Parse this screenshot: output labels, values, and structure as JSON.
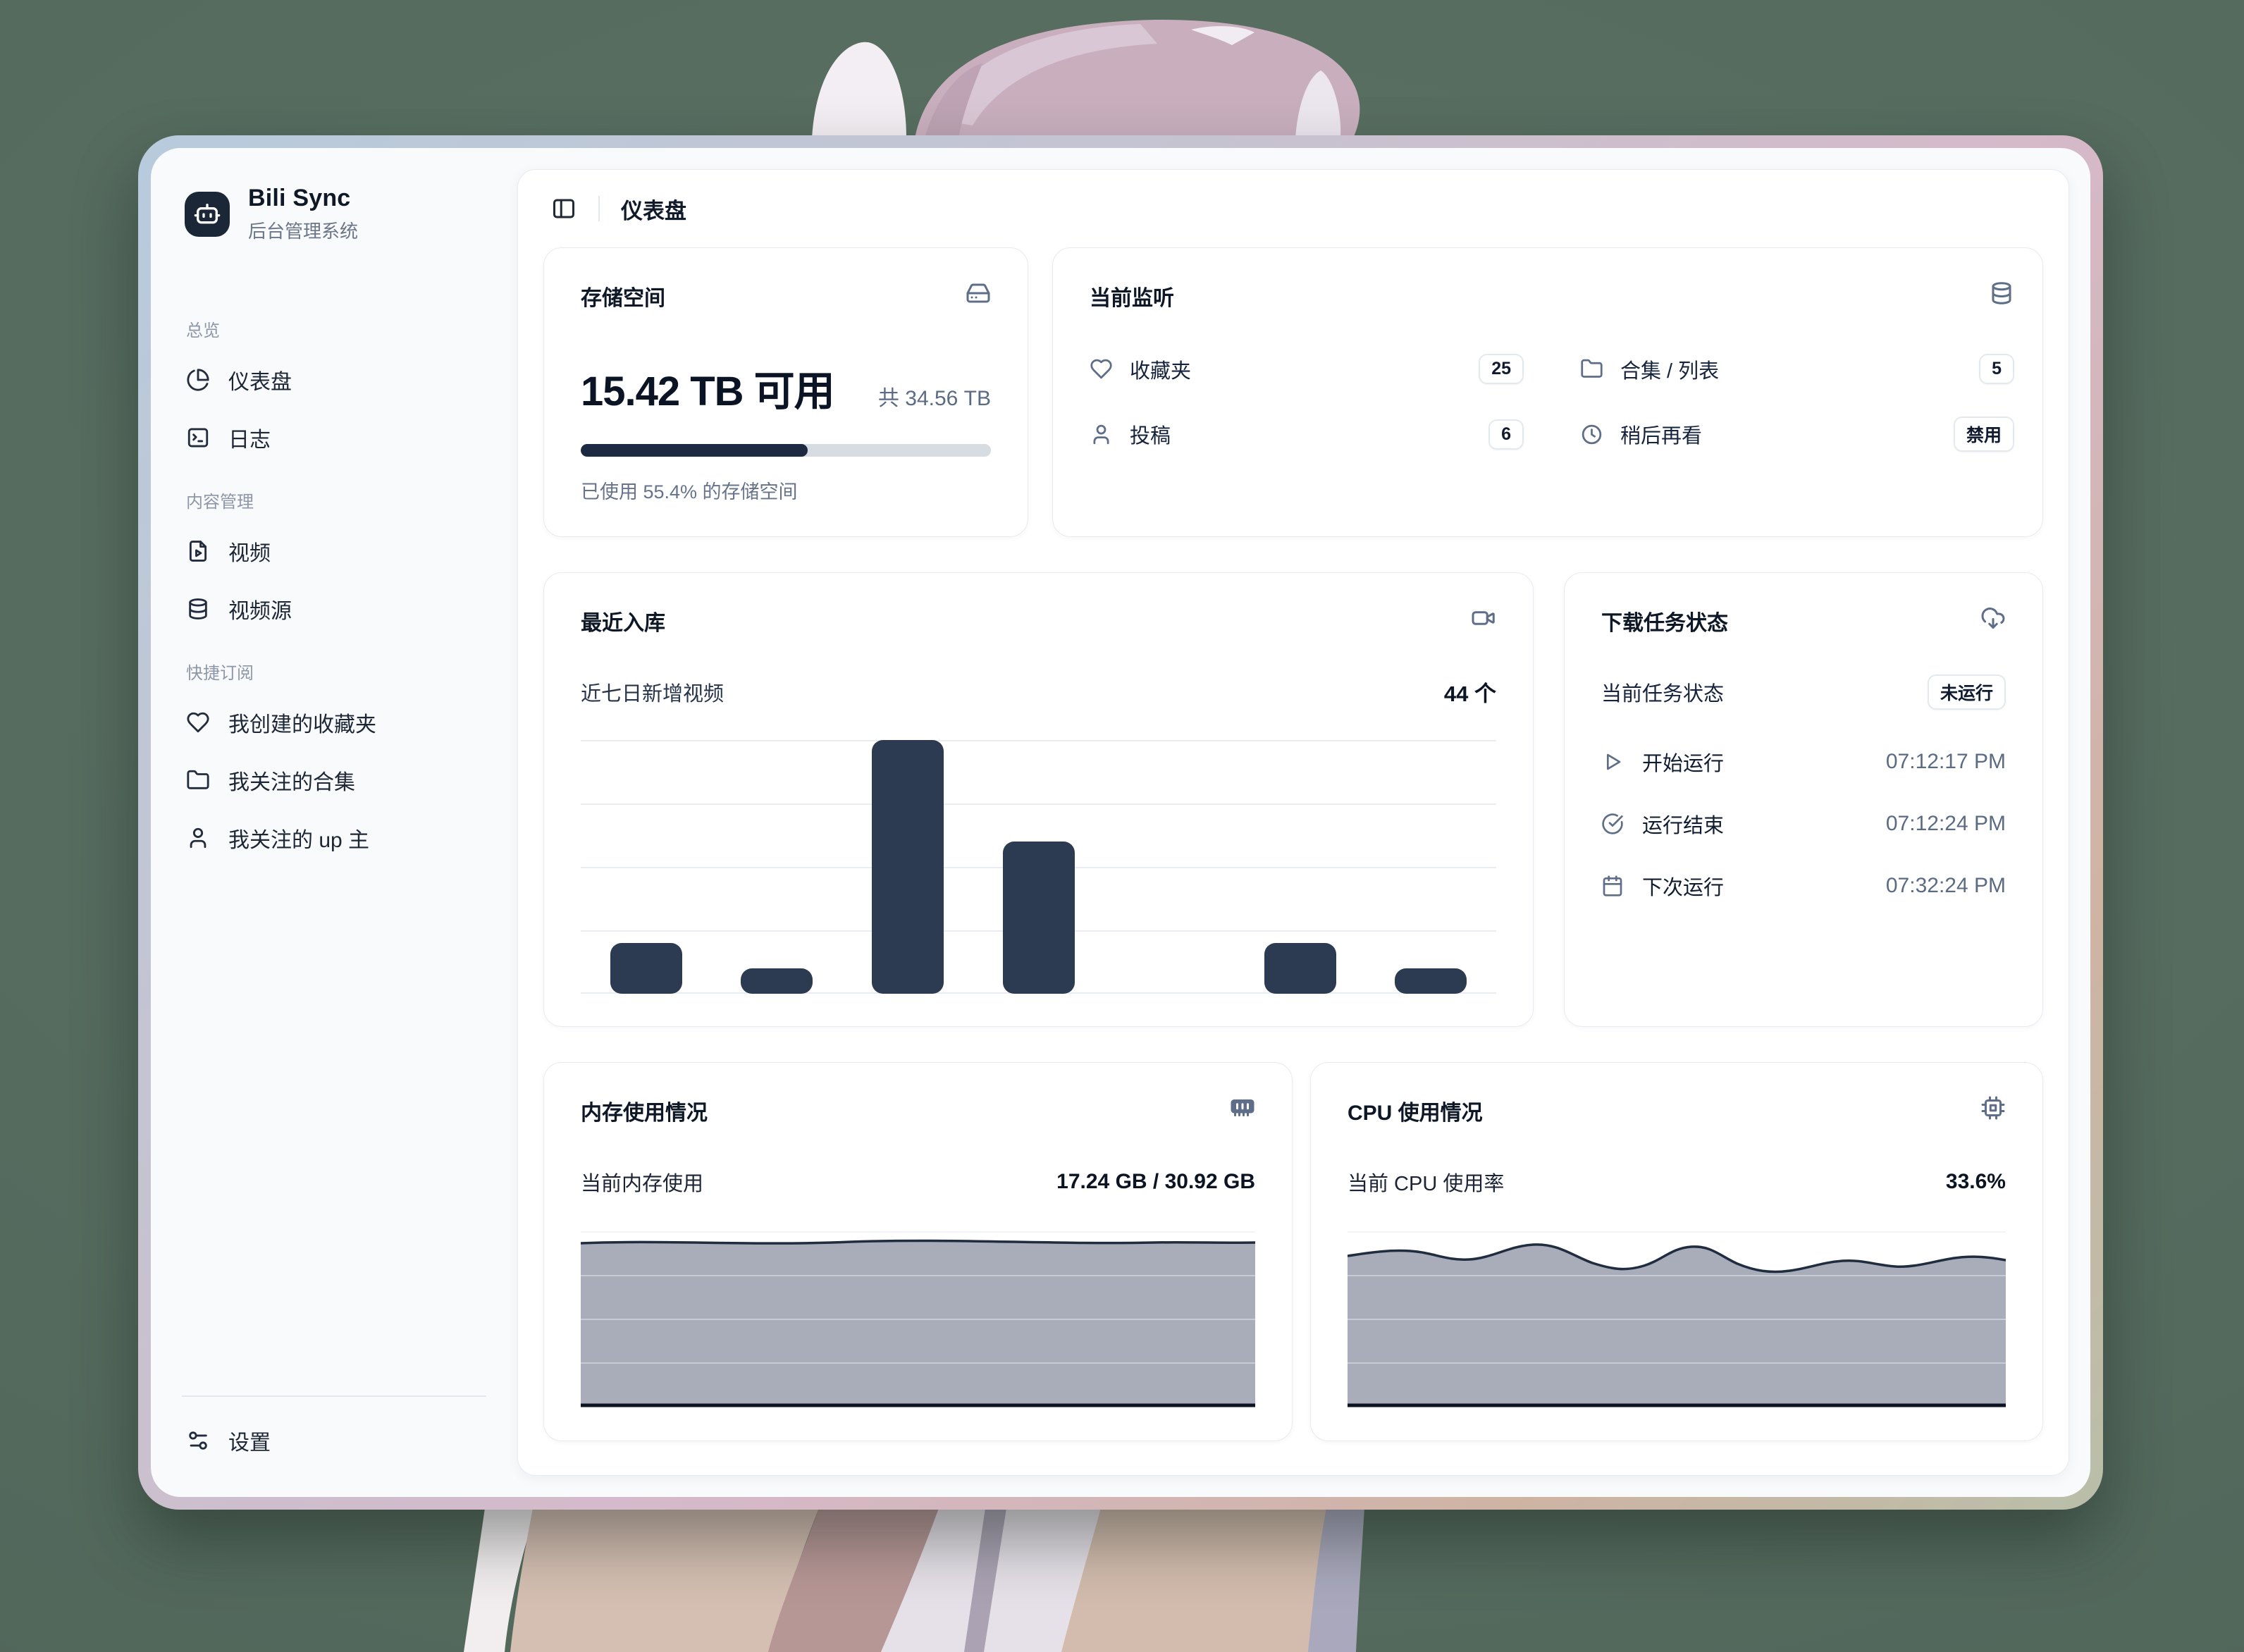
{
  "window": {
    "name": "Bili Sync 后台管理系统"
  },
  "sidebar": {
    "brand": {
      "name": "Bili Sync",
      "subtitle": "后台管理系统"
    },
    "sections": [
      {
        "label": "总览",
        "items": [
          {
            "icon": "pie-chart-icon",
            "label": "仪表盘"
          },
          {
            "icon": "terminal-square-icon",
            "label": "日志"
          }
        ]
      },
      {
        "label": "内容管理",
        "items": [
          {
            "icon": "file-play-icon",
            "label": "视频"
          },
          {
            "icon": "database-icon",
            "label": "视频源"
          }
        ]
      },
      {
        "label": "快捷订阅",
        "items": [
          {
            "icon": "heart-icon",
            "label": "我创建的收藏夹"
          },
          {
            "icon": "folder-icon",
            "label": "我关注的合集"
          },
          {
            "icon": "user-icon",
            "label": "我关注的 up 主"
          }
        ]
      }
    ],
    "footer": {
      "icon": "sliders-icon",
      "label": "设置"
    }
  },
  "header": {
    "title": "仪表盘"
  },
  "cards": {
    "storage": {
      "title": "存储空间",
      "icon": "hard-drive-icon",
      "available": "15.42 TB 可用",
      "total": "共 34.56 TB",
      "used_percent": 55.4,
      "caption": "已使用 55.4% 的存储空间"
    },
    "monitor": {
      "title": "当前监听",
      "icon": "database-icon",
      "items": [
        {
          "icon": "heart-icon",
          "label": "收藏夹",
          "value": "25"
        },
        {
          "icon": "folder-icon",
          "label": "合集 / 列表",
          "value": "5"
        },
        {
          "icon": "user-icon",
          "label": "投稿",
          "value": "6"
        },
        {
          "icon": "clock-icon",
          "label": "稍后再看",
          "value": "禁用"
        }
      ]
    },
    "recent": {
      "title": "最近入库",
      "icon": "video-icon",
      "subtitle": "近七日新增视频",
      "count": "44 个"
    },
    "tasks": {
      "title": "下载任务状态",
      "icon": "cloud-download-icon",
      "status_label": "当前任务状态",
      "status_value": "未运行",
      "rows": [
        {
          "icon": "play-icon",
          "label": "开始运行",
          "time": "07:12:17 PM"
        },
        {
          "icon": "check-circle-icon",
          "label": "运行结束",
          "time": "07:12:24 PM"
        },
        {
          "icon": "calendar-icon",
          "label": "下次运行",
          "time": "07:32:24 PM"
        }
      ]
    },
    "memory": {
      "title": "内存使用情况",
      "icon": "memory-icon",
      "label": "当前内存使用",
      "value": "17.24 GB / 30.92 GB"
    },
    "cpu": {
      "title": "CPU 使用情况",
      "icon": "cpu-icon",
      "label": "当前 CPU 使用率",
      "value": "33.6%"
    }
  },
  "chart_data": [
    {
      "type": "bar",
      "title": "近七日新增视频",
      "categories": [
        "",
        "",
        "",
        "",
        "",
        "",
        ""
      ],
      "values": [
        4,
        2,
        20,
        12,
        0,
        4,
        2
      ],
      "total_label": "44 个",
      "ylim": [
        0,
        20
      ],
      "grid": true,
      "bar_color": "#2d3b52"
    },
    {
      "type": "area",
      "title": "当前内存使用",
      "current": "17.24 GB / 30.92 GB",
      "fill_fraction_series": [
        0.93,
        0.94,
        0.92,
        0.94,
        0.95,
        0.93,
        0.94,
        0.93
      ],
      "grid": true
    },
    {
      "type": "area",
      "title": "当前 CPU 使用率",
      "current": "33.6%",
      "fill_fraction_series": [
        0.86,
        0.88,
        0.84,
        0.92,
        0.78,
        0.82,
        0.91,
        0.76,
        0.8,
        0.82,
        0.84,
        0.85,
        0.83
      ],
      "grid": true
    }
  ],
  "colors": {
    "desktop_bg": "#546a5d",
    "frame_gradient": [
      "#b7cbdc",
      "#d6b9c9",
      "#cfb3a3",
      "#b9bfa9"
    ],
    "accent_navy": "#1c2940",
    "bar": "#2d3b52",
    "area_fill": "#a8adb9",
    "area_stroke": "#202c40",
    "muted_icon": "#5e6e88"
  }
}
